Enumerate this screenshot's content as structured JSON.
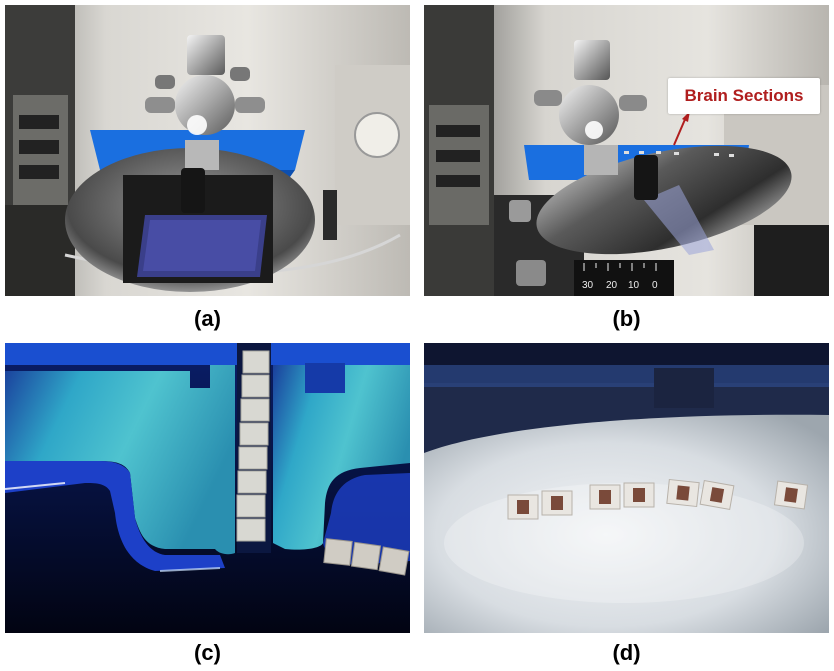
{
  "figure": {
    "panels": [
      {
        "id": "a",
        "caption": "(a)"
      },
      {
        "id": "b",
        "caption": "(b)",
        "annotation": "Brain Sections"
      },
      {
        "id": "c",
        "caption": "(c)"
      },
      {
        "id": "d",
        "caption": "(d)"
      }
    ],
    "scale_ticks": [
      "30",
      "20",
      "10",
      "0"
    ],
    "colors": {
      "accent_blue": "#1a6fe0",
      "annotation_red": "#b01e1e",
      "section_tissue": "#7a4a3a"
    }
  }
}
